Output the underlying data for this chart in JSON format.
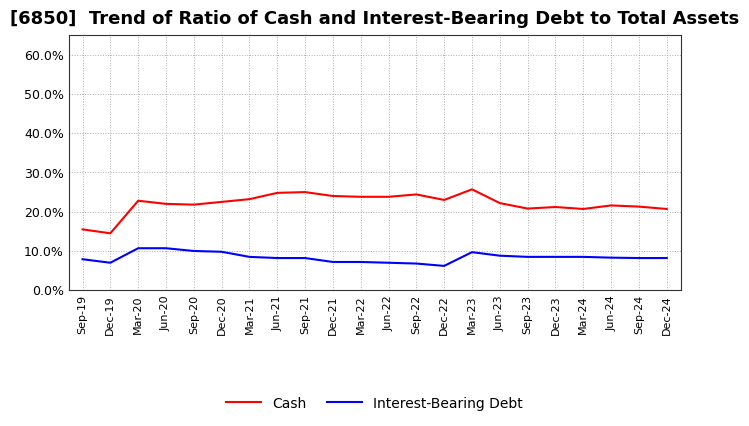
{
  "title": "[6850]  Trend of Ratio of Cash and Interest-Bearing Debt to Total Assets",
  "x_labels": [
    "Sep-19",
    "Dec-19",
    "Mar-20",
    "Jun-20",
    "Sep-20",
    "Dec-20",
    "Mar-21",
    "Jun-21",
    "Sep-21",
    "Dec-21",
    "Mar-22",
    "Jun-22",
    "Sep-22",
    "Dec-22",
    "Mar-23",
    "Jun-23",
    "Sep-23",
    "Dec-23",
    "Mar-24",
    "Jun-24",
    "Sep-24",
    "Dec-24"
  ],
  "cash": [
    0.155,
    0.145,
    0.228,
    0.22,
    0.218,
    0.225,
    0.232,
    0.248,
    0.25,
    0.24,
    0.238,
    0.238,
    0.244,
    0.23,
    0.257,
    0.222,
    0.208,
    0.212,
    0.207,
    0.216,
    0.213,
    0.207
  ],
  "debt": [
    0.079,
    0.07,
    0.107,
    0.107,
    0.1,
    0.098,
    0.085,
    0.082,
    0.082,
    0.072,
    0.072,
    0.07,
    0.068,
    0.062,
    0.097,
    0.088,
    0.085,
    0.085,
    0.085,
    0.083,
    0.082,
    0.082
  ],
  "cash_color": "#FF0000",
  "debt_color": "#0000FF",
  "ylim": [
    0.0,
    0.65
  ],
  "yticks": [
    0.0,
    0.1,
    0.2,
    0.3,
    0.4,
    0.5,
    0.6
  ],
  "background_color": "#FFFFFF",
  "grid_color": "#999999",
  "title_fontsize": 13,
  "tick_fontsize": 9,
  "xtick_fontsize": 8,
  "legend_cash": "Cash",
  "legend_debt": "Interest-Bearing Debt",
  "legend_fontsize": 10
}
